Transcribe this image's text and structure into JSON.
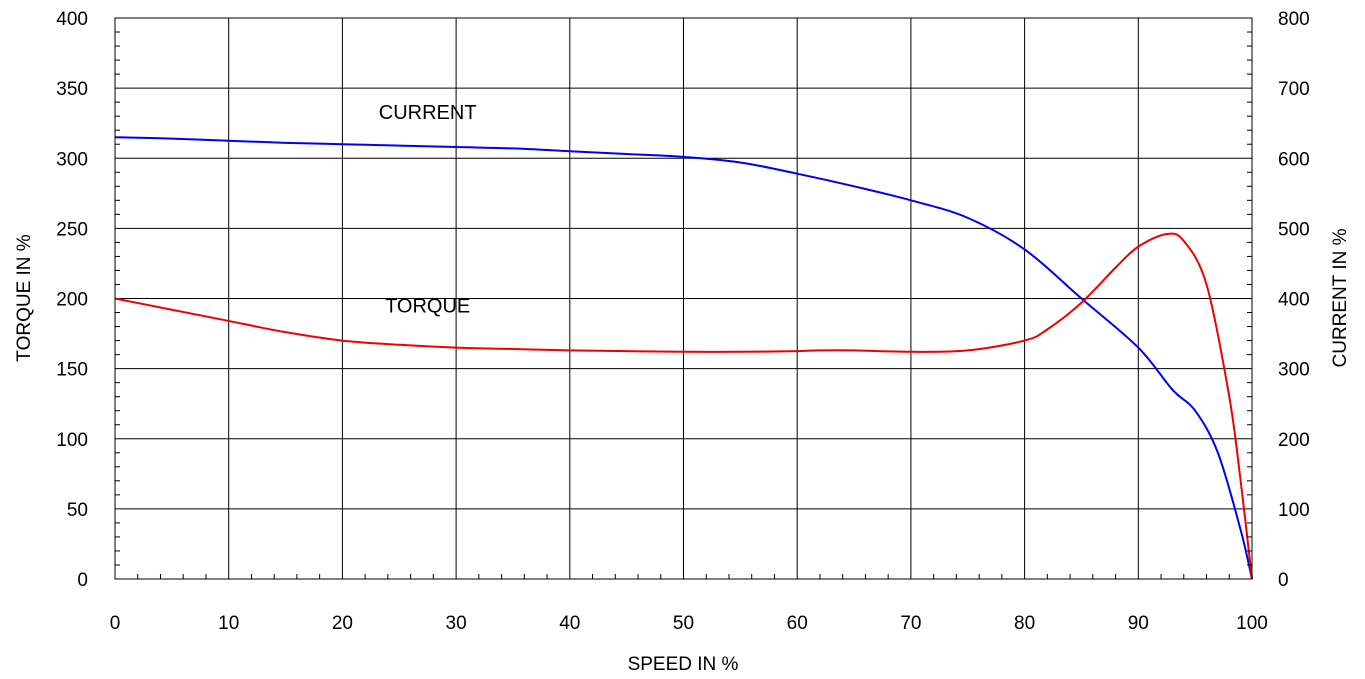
{
  "chart_data": {
    "type": "line",
    "xlabel": "SPEED IN %",
    "ylabel": "TORQUE IN %",
    "y2label": "CURRENT IN %",
    "xlim": [
      0,
      100
    ],
    "ylim": [
      0,
      400
    ],
    "y2lim": [
      0,
      800
    ],
    "xticks": [
      0,
      10,
      20,
      30,
      40,
      50,
      60,
      70,
      80,
      90,
      100
    ],
    "yticks": [
      0,
      50,
      100,
      150,
      200,
      250,
      300,
      350,
      400
    ],
    "y2ticks": [
      0,
      100,
      200,
      300,
      400,
      500,
      600,
      700,
      800
    ],
    "grid": true,
    "series": [
      {
        "name": "CURRENT",
        "axis": "right",
        "color": "#0000ee",
        "x": [
          0,
          5,
          10,
          15,
          20,
          25,
          30,
          35,
          40,
          45,
          50,
          55,
          60,
          65,
          70,
          75,
          80,
          85,
          90,
          93,
          95,
          97,
          99,
          100
        ],
        "y": [
          630,
          628,
          625,
          622,
          620,
          618,
          616,
          614,
          610,
          606,
          602,
          594,
          578,
          560,
          540,
          515,
          470,
          400,
          330,
          270,
          240,
          180,
          70,
          0
        ]
      },
      {
        "name": "TORQUE",
        "axis": "left",
        "color": "#ee0000",
        "x": [
          0,
          5,
          10,
          15,
          20,
          25,
          30,
          35,
          40,
          45,
          50,
          55,
          60,
          62,
          65,
          70,
          75,
          80,
          82,
          85,
          88,
          90,
          92.5,
          94,
          96,
          98,
          99,
          100
        ],
        "y": [
          200,
          192,
          184,
          176,
          170,
          167,
          165,
          164,
          163,
          162.5,
          162,
          162,
          162.5,
          163,
          163,
          162,
          163,
          170,
          178,
          197,
          222,
          237,
          246,
          241,
          210,
          130,
          70,
          0
        ]
      }
    ],
    "annotations": [
      {
        "text": "CURRENT",
        "x": 27.5,
        "y": 328
      },
      {
        "text": "TORQUE",
        "x": 27.5,
        "y": 190
      }
    ]
  }
}
